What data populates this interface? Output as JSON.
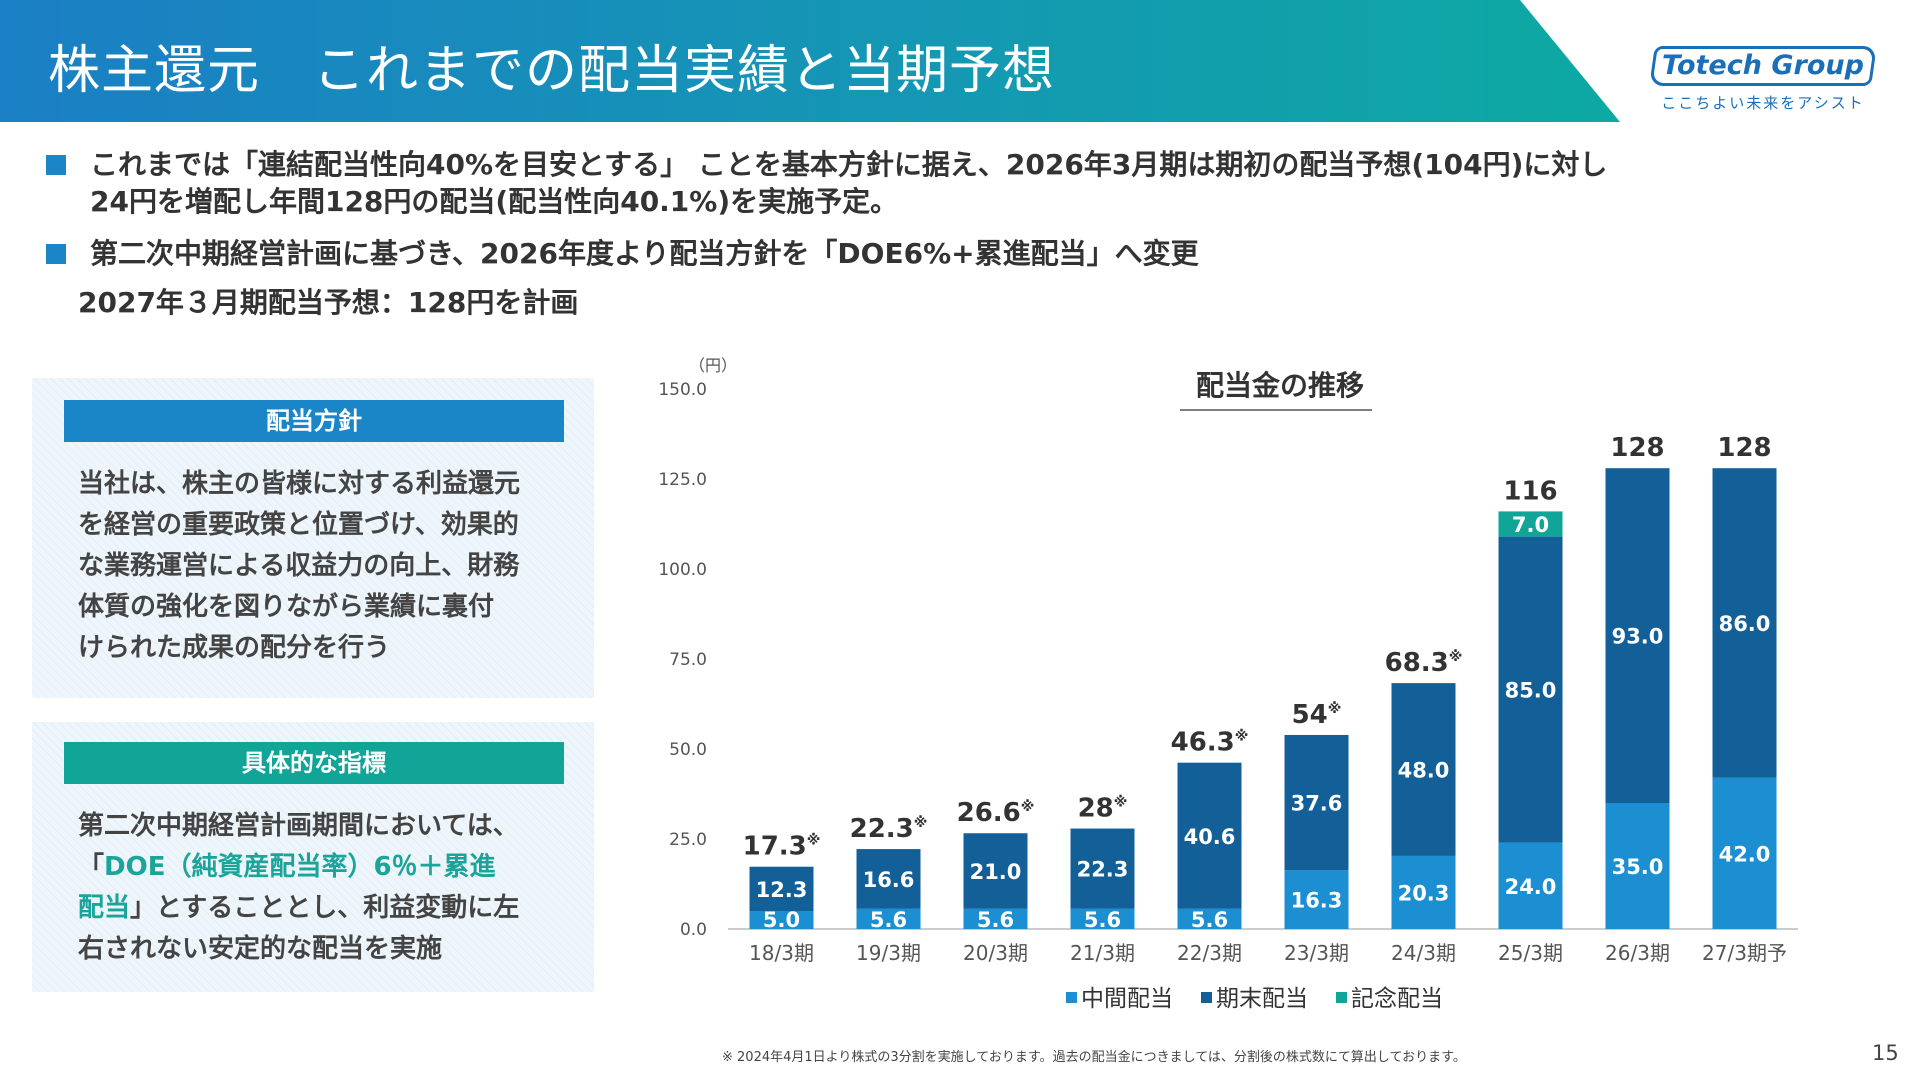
{
  "header": {
    "title": "株主還元　これまでの配当実績と当期予想",
    "logo": "Totech Group",
    "tagline": "ここちよい未来をアシスト"
  },
  "bullets": [
    {
      "lines": [
        "これまでは「連結配当性向40%を目安とする」 ことを基本方針に据え、2026年3月期は期初の配当予想(104円)に対し",
        "24円を増配し年間128円の配当(配当性向40.1%)を実施予定。"
      ]
    },
    {
      "lines": [
        "第二次中期経営計画に基づき、2026年度より配当方針を「DOE6%+累進配当」へ変更",
        "2027年３月期配当予想：128円を計画"
      ]
    }
  ],
  "policy": {
    "title": "配当方針",
    "lines": [
      "当社は、株主の皆様に対する利益還元",
      "を経営の重要政策と位置づけ、効果的",
      "な業務運営による収益力の向上、財務",
      "体質の強化を図りながら業績に裏付",
      "けられた成果の配分を行う"
    ]
  },
  "indicator": {
    "title": "具体的な指標",
    "line1": "第二次中期経営計画期間においては、",
    "line2_open": "「",
    "line2_hl": "DOE（純資産配当率）6％＋累進",
    "line3_hl": "配当",
    "line3_rest": "」とすることとし、利益変動に左",
    "line4": "右されない安定的な配当を実施"
  },
  "chart_data": {
    "type": "bar",
    "stacked": true,
    "title": "配当金の推移",
    "y_unit": "（円）",
    "ylim": [
      0,
      150
    ],
    "y_ticks": [
      "0.0",
      "25.0",
      "50.0",
      "75.0",
      "100.0",
      "125.0",
      "150.0"
    ],
    "grid": false,
    "legend_position": "bottom",
    "categories": [
      "18/3期",
      "19/3期",
      "20/3期",
      "21/3期",
      "22/3期",
      "23/3期",
      "24/3期",
      "25/3期",
      "26/3期",
      "27/3期予"
    ],
    "series": [
      {
        "name": "中間配当",
        "color": "#1b8fd2",
        "values": [
          5.0,
          5.6,
          5.6,
          5.6,
          5.6,
          16.3,
          20.3,
          24.0,
          35.0,
          42.0
        ],
        "labels": [
          "5.0",
          "5.6",
          "5.6",
          "5.6",
          "5.6",
          "16.3",
          "20.3",
          "24.0",
          "35.0",
          "42.0"
        ]
      },
      {
        "name": "期末配当",
        "color": "#135f97",
        "values": [
          12.3,
          16.6,
          21.0,
          22.3,
          40.6,
          37.6,
          48.0,
          85.0,
          93.0,
          86.0
        ],
        "labels": [
          "12.3",
          "16.6",
          "21.0",
          "22.3",
          "40.6",
          "37.6",
          "48.0",
          "85.0",
          "93.0",
          "86.0"
        ]
      },
      {
        "name": "記念配当",
        "color": "#11a598",
        "values": [
          0,
          0,
          0,
          0,
          0,
          0,
          0,
          7.0,
          0,
          0
        ],
        "labels": [
          "",
          "",
          "",
          "",
          "",
          "",
          "",
          "7.0",
          "",
          ""
        ]
      }
    ],
    "totals": [
      "17.3",
      "22.3",
      "26.6",
      "28",
      "46.3",
      "54",
      "68.3",
      "116",
      "128",
      "128"
    ],
    "total_marks": [
      "※",
      "※",
      "※",
      "※",
      "※",
      "※",
      "※",
      "",
      "",
      ""
    ]
  },
  "footnote": "※ 2024年4月1日より株式の3分割を実施しております。過去の配当金につきましては、分割後の株式数にて算出しております。",
  "page_number": "15"
}
